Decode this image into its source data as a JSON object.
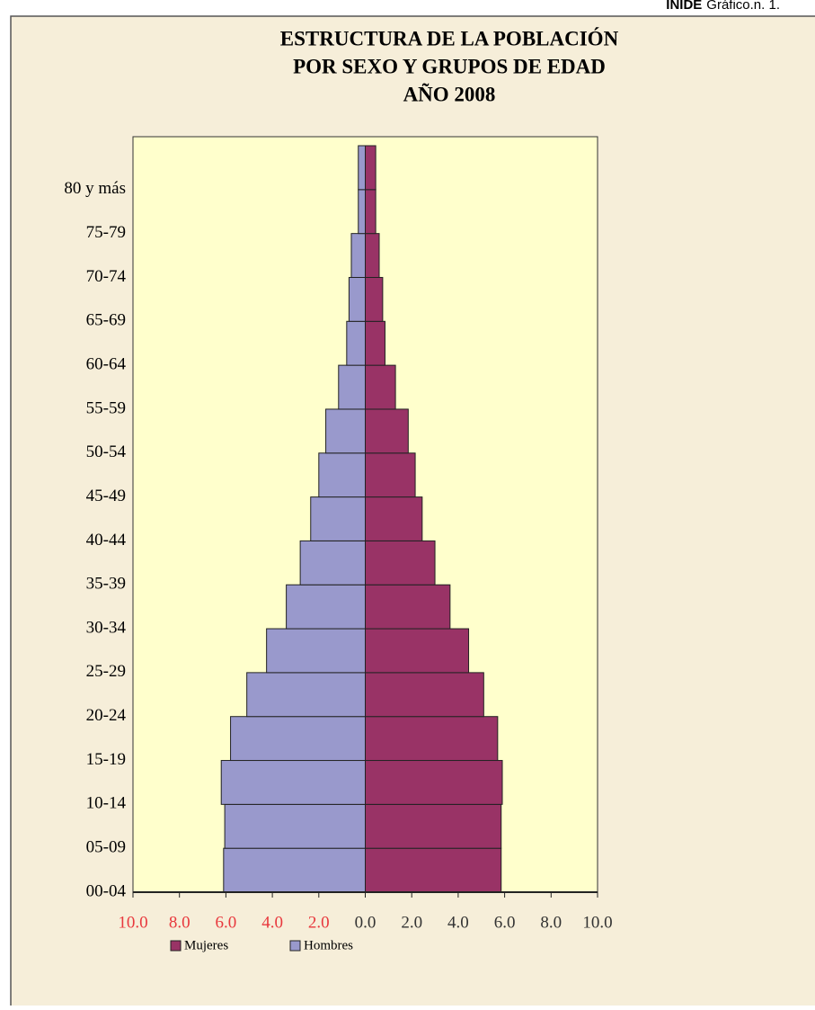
{
  "header": {
    "org": "INIDE",
    "ref": "Gráfico.n. 1."
  },
  "chart_data": {
    "type": "pyramid",
    "title": [
      "ESTRUCTURA DE LA POBLACIÓN",
      "POR SEXO Y GRUPOS DE EDAD",
      "AÑO 2008"
    ],
    "categories": [
      "00-04",
      "05-09",
      "10-14",
      "15-19",
      "20-24",
      "25-29",
      "30-34",
      "35-39",
      "40-44",
      "45-49",
      "50-54",
      "55-59",
      "60-64",
      "65-69",
      "70-74",
      "75-79",
      "80 y más"
    ],
    "series": [
      {
        "name": "Mujeres",
        "color": "#993366",
        "side": "right",
        "values": [
          5.85,
          5.85,
          5.9,
          5.7,
          5.1,
          4.45,
          3.65,
          3.0,
          2.45,
          2.15,
          1.85,
          1.3,
          0.85,
          0.75,
          0.6,
          0.45,
          0.45
        ]
      },
      {
        "name": "Hombres",
        "color": "#9999cc",
        "side": "left",
        "values": [
          6.1,
          6.05,
          6.2,
          5.8,
          5.1,
          4.25,
          3.4,
          2.8,
          2.35,
          2.0,
          1.7,
          1.15,
          0.8,
          0.7,
          0.6,
          0.3,
          0.3
        ]
      }
    ],
    "xlim": [
      -10,
      10
    ],
    "xticks": [
      {
        "value": -10,
        "label": "10.0"
      },
      {
        "value": -8,
        "label": "8.0"
      },
      {
        "value": -6,
        "label": "6.0"
      },
      {
        "value": -4,
        "label": "4.0"
      },
      {
        "value": -2,
        "label": "2.0"
      },
      {
        "value": 0,
        "label": "0.0"
      },
      {
        "value": 2,
        "label": "2.0"
      },
      {
        "value": 4,
        "label": "4.0"
      },
      {
        "value": 6,
        "label": "6.0"
      },
      {
        "value": 8,
        "label": "8.0"
      },
      {
        "value": 10,
        "label": "10.0"
      }
    ],
    "left_tick_color": "#e8383d",
    "right_tick_color": "#333333",
    "plot_background": "#ffffcc"
  }
}
